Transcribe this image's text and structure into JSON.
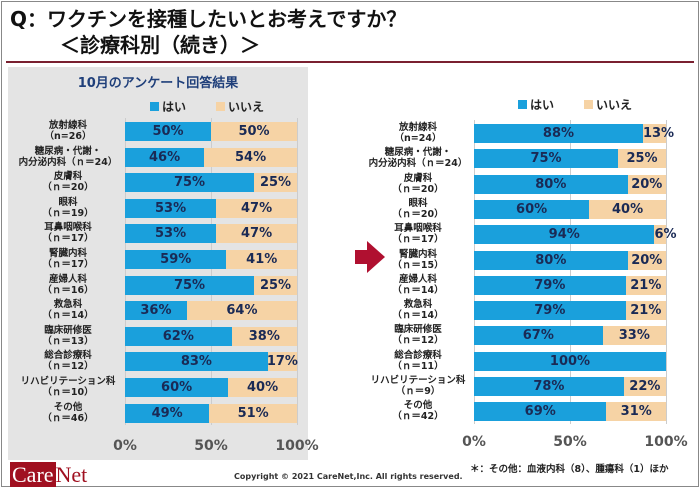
{
  "title": {
    "line1": "Q：ワクチンを接種したいとお考えですか？",
    "line2": "＜診療科別（続き）＞"
  },
  "colors": {
    "yes": "#1aa0dc",
    "no": "#f6d3a5",
    "arrow": "#b01030"
  },
  "footer": {
    "logo": "CareNet",
    "copyright": "Copyright © 2021 CareNet,Inc. All rights reserved.",
    "note": "＊：その他：血液内科（8）、腫瘍科（1）ほか"
  },
  "chart_data": [
    {
      "type": "bar",
      "orientation": "horizontal",
      "stacked": true,
      "title": "10月のアンケート回答結果",
      "legend": [
        "はい",
        "いいえ"
      ],
      "xlim": [
        0,
        100
      ],
      "xticks": [
        "0%",
        "50%",
        "100%"
      ],
      "categories": [
        "放射線科\n（n=26）",
        "糖尿病・代謝・\n内分泌内科（ｎ＝24）",
        "皮膚科\n（ｎ＝20）",
        "眼科\n（ｎ＝19）",
        "耳鼻咽喉科\n（ｎ＝17）",
        "腎臓内科\n（ｎ＝17）",
        "産婦人科\n（ｎ＝16）",
        "救急科\n（ｎ＝14）",
        "臨床研修医\n（ｎ＝13）",
        "総合診療科\n（ｎ＝12）",
        "リハビリテーション科\n（ｎ＝10）",
        "その他\n（ｎ＝46）"
      ],
      "series": [
        {
          "name": "はい",
          "values": [
            50,
            46,
            75,
            53,
            53,
            59,
            75,
            36,
            62,
            83,
            60,
            49
          ]
        },
        {
          "name": "いいえ",
          "values": [
            50,
            54,
            25,
            47,
            47,
            41,
            25,
            64,
            38,
            17,
            40,
            51
          ]
        }
      ]
    },
    {
      "type": "bar",
      "orientation": "horizontal",
      "stacked": true,
      "title": "",
      "legend": [
        "はい",
        "いいえ"
      ],
      "xlim": [
        0,
        100
      ],
      "xticks": [
        "0%",
        "50%",
        "100%"
      ],
      "categories": [
        "放射線科\n（n=24）",
        "糖尿病・代謝・\n内分泌内科（ｎ＝24）",
        "皮膚科\n（ｎ＝20）",
        "眼科\n（ｎ＝20）",
        "耳鼻咽喉科\n（ｎ＝17）",
        "腎臓内科\n（ｎ＝15）",
        "産婦人科\n（ｎ＝14）",
        "救急科\n（ｎ＝14）",
        "臨床研修医\n（ｎ＝12）",
        "総合診療科\n（ｎ＝11）",
        "リハビリテーション科\n（ｎ＝9）",
        "その他\n（ｎ＝42）"
      ],
      "series": [
        {
          "name": "はい",
          "values": [
            88,
            75,
            80,
            60,
            94,
            80,
            79,
            79,
            67,
            100,
            78,
            69
          ]
        },
        {
          "name": "いいえ",
          "values": [
            13,
            25,
            20,
            40,
            6,
            20,
            21,
            21,
            33,
            0,
            22,
            31
          ]
        }
      ]
    }
  ]
}
